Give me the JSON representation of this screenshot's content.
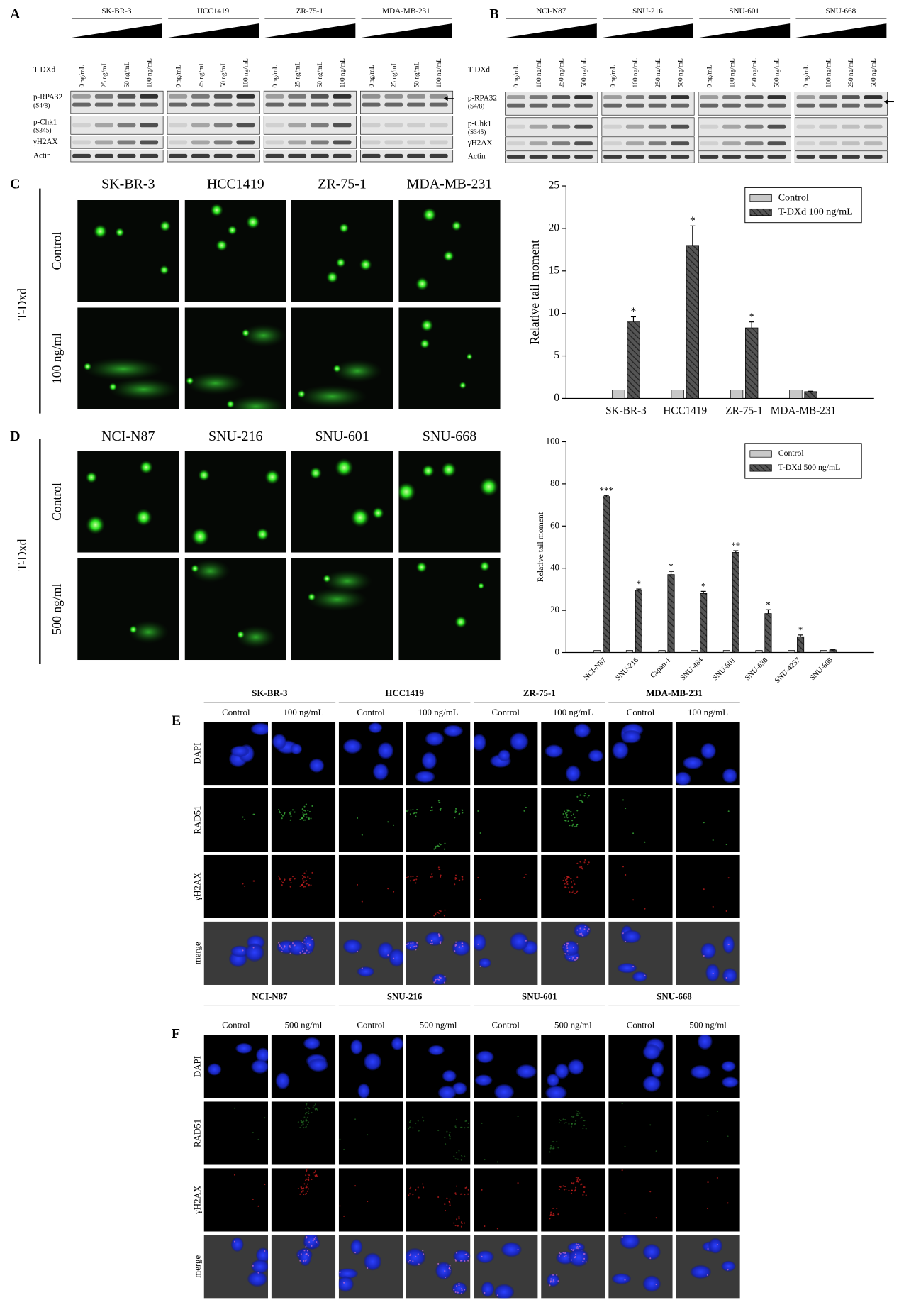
{
  "panels": {
    "A": {
      "label": "A",
      "treatment": "T-DXd",
      "cell_lines": [
        "SK-BR-3",
        "HCC1419",
        "ZR-75-1",
        "MDA-MB-231"
      ],
      "doses": [
        "0 ng/mL",
        "25 ng/mL",
        "50 ng/mL",
        "100 ng/mL"
      ],
      "rows": [
        {
          "name": "p-RPA32",
          "site": "(S4/8)"
        },
        {
          "name": "p-Chk1",
          "site": "(S345)"
        },
        {
          "name": "γH2AX"
        },
        {
          "name": "Actin"
        }
      ]
    },
    "B": {
      "label": "B",
      "treatment": "T-DXd",
      "cell_lines": [
        "NCI-N87",
        "SNU-216",
        "SNU-601",
        "SNU-668"
      ],
      "doses": [
        "0 ng/mL",
        "100 ng/mL",
        "250 ng/mL",
        "500 ng/mL"
      ],
      "rows": [
        {
          "name": "p-RPA32",
          "site": "(S4/8)"
        },
        {
          "name": "p-Chk1",
          "site": "(S345)"
        },
        {
          "name": "γH2AX"
        },
        {
          "name": "Actin"
        }
      ]
    },
    "C": {
      "label": "C",
      "treatment": "T-Dxd",
      "cell_lines": [
        "SK-BR-3",
        "HCC1419",
        "ZR-75-1",
        "MDA-MB-231"
      ],
      "conditions": [
        "Control",
        "100 ng/ml"
      ]
    },
    "D": {
      "label": "D",
      "treatment": "T-Dxd",
      "cell_lines": [
        "NCI-N87",
        "SNU-216",
        "SNU-601",
        "SNU-668"
      ],
      "conditions": [
        "Control",
        "500 ng/ml"
      ]
    },
    "E": {
      "label": "E",
      "cell_lines": [
        "SK-BR-3",
        "HCC1419",
        "ZR-75-1",
        "MDA-MB-231"
      ],
      "conditions": [
        "Control",
        "100 ng/mL"
      ],
      "stains": [
        "DAPI",
        "RAD51",
        "γH2AX",
        "merge"
      ]
    },
    "F": {
      "label": "F",
      "cell_lines": [
        "NCI-N87",
        "SNU-216",
        "SNU-601",
        "SNU-668"
      ],
      "conditions": [
        "Control",
        "500 ng/ml"
      ],
      "stains": [
        "DAPI",
        "RAD51",
        "γH2AX",
        "merge"
      ]
    }
  },
  "chart_data": [
    {
      "type": "bar",
      "ylabel": "Relative tail moment",
      "categories": [
        "SK-BR-3",
        "HCC1419",
        "ZR-75-1",
        "MDA-MB-231"
      ],
      "series": [
        {
          "name": "Control",
          "color": "#c8c8c8",
          "values": [
            1,
            1,
            1,
            1
          ]
        },
        {
          "name": "T-DXd 100 ng/mL",
          "color": "#555555",
          "pattern": "hatch",
          "values": [
            9,
            18,
            8.3,
            0.8
          ],
          "errors": [
            0.6,
            2.3,
            0.7,
            0.05
          ]
        }
      ],
      "annotations": [
        "*",
        "*",
        "*",
        null
      ],
      "ylim": [
        0,
        25
      ],
      "yticks": [
        0,
        5,
        10,
        15,
        20,
        25
      ],
      "xtick_rotation": 0,
      "legend": "upper right"
    },
    {
      "type": "bar",
      "ylabel": "Relative tail moment",
      "categories": [
        "NCI-N87",
        "SNU-216",
        "Capan-1",
        "SNU-484",
        "SNU-601",
        "SNU-638",
        "SNU-4257",
        "SNU-668"
      ],
      "series": [
        {
          "name": "Control",
          "color": "#c8c8c8",
          "values": [
            1,
            1,
            1,
            1,
            1,
            1,
            1,
            1
          ]
        },
        {
          "name": "T-DXd 500 ng/mL",
          "color": "#555555",
          "pattern": "hatch",
          "values": [
            74,
            29.5,
            37,
            28,
            47.5,
            18.5,
            7.5,
            1.2
          ],
          "errors": [
            0.5,
            0.6,
            1.5,
            1,
            0.8,
            1.8,
            0.8,
            0.1
          ]
        }
      ],
      "annotations": [
        "***",
        "*",
        "*",
        "*",
        "**",
        "*",
        "*",
        null
      ],
      "ylim": [
        0,
        100
      ],
      "yticks": [
        0,
        20,
        40,
        60,
        80,
        100
      ],
      "xtick_rotation": 45,
      "legend": "upper right"
    }
  ]
}
